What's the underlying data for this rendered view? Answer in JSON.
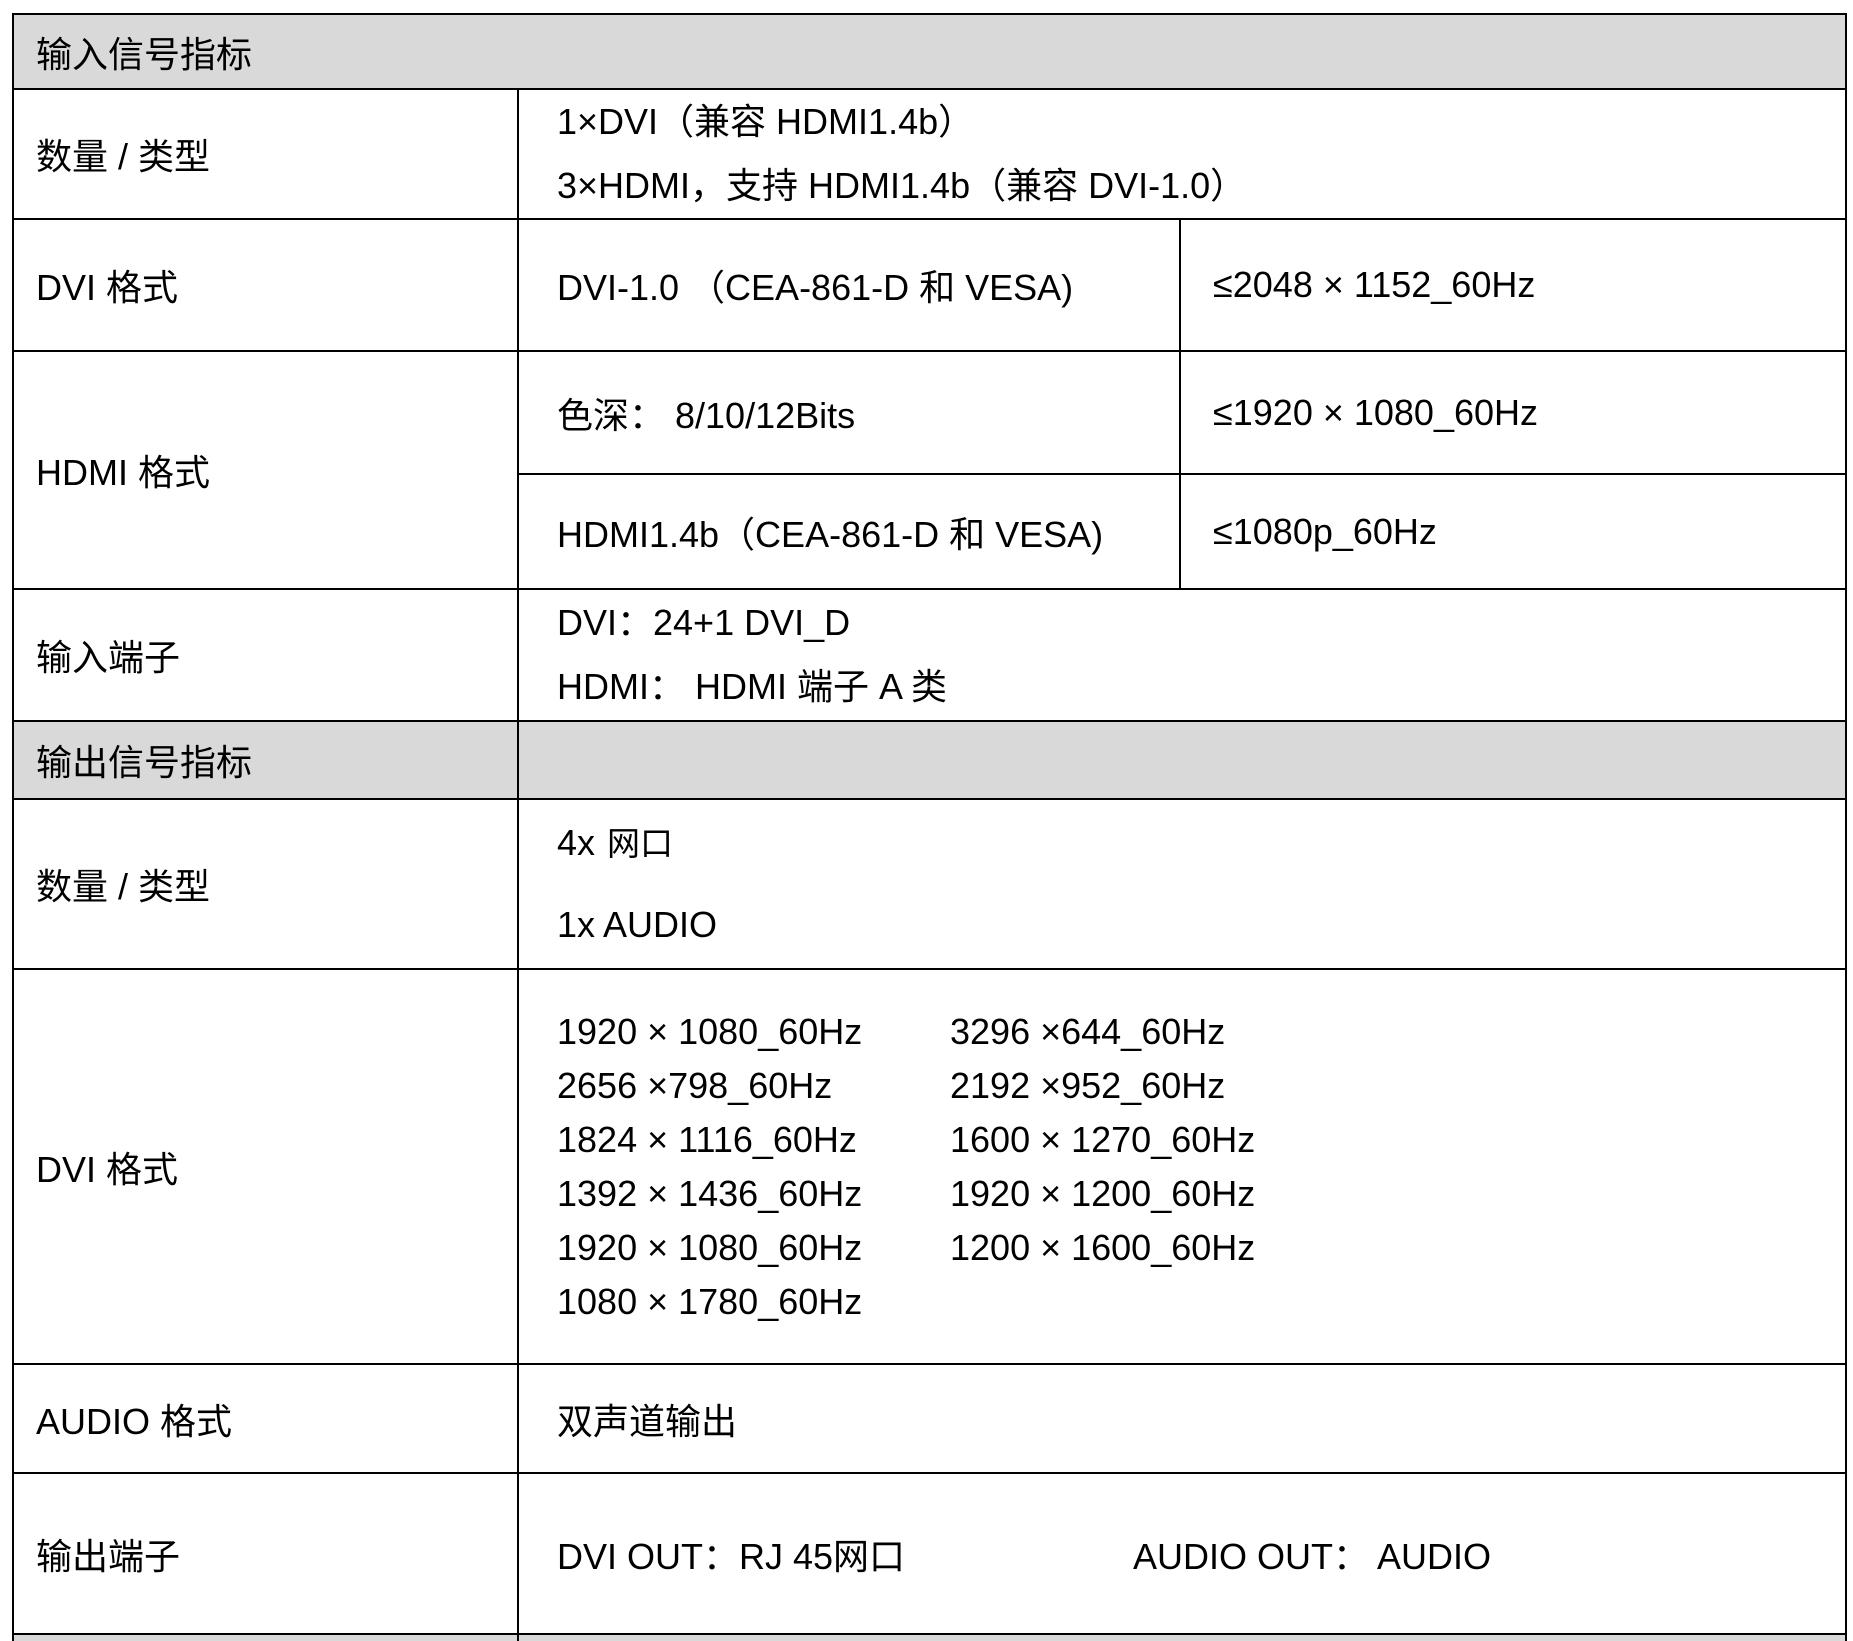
{
  "table": {
    "colors": {
      "header_bg": "#d9d9d9",
      "border": "#000000",
      "text": "#000000"
    },
    "sections": {
      "input_header": "输入信号指标",
      "output_header": "输出信号指标"
    },
    "input": {
      "qty_label": "数量 / 类型",
      "qty_line1": "1×DVI（兼容 HDMI1.4b）",
      "qty_line2": "3×HDMI，支持 HDMI1.4b（兼容 DVI-1.0）",
      "dvi_label": "DVI 格式",
      "dvi_value": "DVI-1.0 （CEA-861-D 和 VESA)",
      "dvi_limit": "≤2048 × 1152_60Hz",
      "hdmi_label": "HDMI 格式",
      "hdmi_depth": "色深： 8/10/12Bits",
      "hdmi_depth_limit": "≤1920 × 1080_60Hz",
      "hdmi_value": "HDMI1.4b（CEA-861-D 和 VESA)",
      "hdmi_limit": "≤1080p_60Hz",
      "conn_label": "输入端子",
      "conn_line1": "DVI：24+1 DVI_D",
      "conn_line2": "HDMI： HDMI 端子 A 类"
    },
    "output": {
      "qty_label": "数量 / 类型",
      "qty_line1_num": "4x",
      "qty_line1_text": "网口",
      "qty_line2": "1x AUDIO",
      "dvi_label": "DVI 格式",
      "resolutions_left": [
        "1920 × 1080_60Hz",
        "2656 ×798_60Hz",
        "1824 × 1116_60Hz",
        "1392 × 1436_60Hz",
        "1920 × 1080_60Hz",
        "1080 × 1780_60Hz"
      ],
      "resolutions_right": [
        "3296 ×644_60Hz",
        "2192 ×952_60Hz",
        "1600 × 1270_60Hz",
        "1920 × 1200_60Hz",
        "1200 × 1600_60Hz"
      ],
      "audio_label": "AUDIO 格式",
      "audio_value": "双声道输出",
      "conn_label": "输出端子",
      "conn_dvi": "DVI OUT：RJ 45网口",
      "conn_audio": "AUDIO OUT： AUDIO"
    }
  }
}
